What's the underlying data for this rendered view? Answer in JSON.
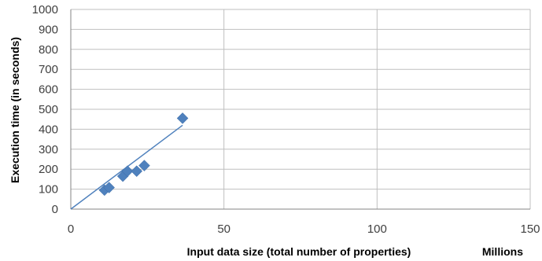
{
  "chart_data": {
    "type": "scatter",
    "title": "",
    "xlabel": "Input data size (total number of properties)",
    "x_unit_label": "Millions",
    "ylabel": "Execution time (in seconds)",
    "xlim": [
      0,
      150
    ],
    "ylim": [
      0,
      1000
    ],
    "x_ticks": [
      "0",
      "50",
      "100",
      "150"
    ],
    "y_ticks": [
      "0",
      "100",
      "200",
      "300",
      "400",
      "500",
      "600",
      "700",
      "800",
      "900",
      "1000"
    ],
    "grid": {
      "horizontal": true,
      "vertical": true
    },
    "legend": "none",
    "series": [
      {
        "marker": "diamond",
        "color": "#4F81BD",
        "points": [
          {
            "x": 11,
            "y": 95
          },
          {
            "x": 12.5,
            "y": 108
          },
          {
            "x": 17,
            "y": 165
          },
          {
            "x": 18.5,
            "y": 190
          },
          {
            "x": 21.5,
            "y": 190
          },
          {
            "x": 24,
            "y": 218
          },
          {
            "x": 36.5,
            "y": 455
          }
        ]
      }
    ],
    "trendline": {
      "type": "linear",
      "color": "#4F81BD",
      "x_range": [
        0,
        36.5
      ],
      "y_range": [
        0,
        420
      ]
    }
  }
}
